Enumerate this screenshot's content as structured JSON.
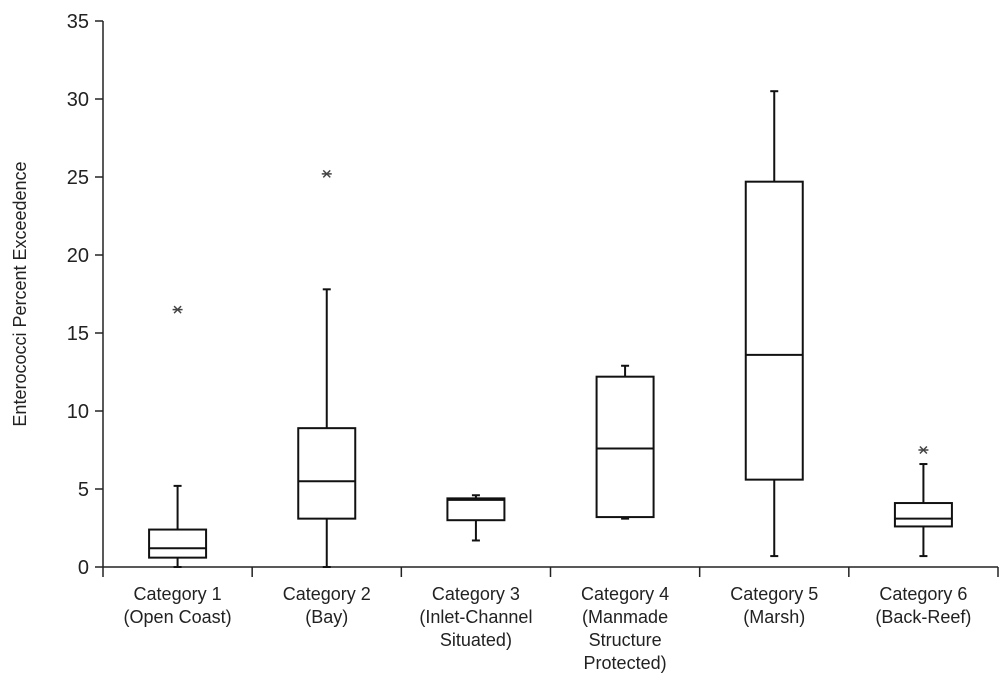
{
  "chart_data": {
    "type": "boxplot",
    "title": "",
    "xlabel": "",
    "ylabel": "Enterococci  Percent Exceedence",
    "ylim": [
      0,
      35
    ],
    "yticks": [
      0,
      5,
      10,
      15,
      20,
      25,
      30,
      35
    ],
    "grid": false,
    "categories": [
      [
        "Category 1",
        "(Open Coast)"
      ],
      [
        "Category 2",
        "(Bay)"
      ],
      [
        "Category 3",
        "(Inlet-Channel",
        "Situated)"
      ],
      [
        "Category 4",
        "(Manmade",
        "Structure",
        "Protected)"
      ],
      [
        "Category 5",
        "(Marsh)"
      ],
      [
        "Category 6",
        "(Back-Reef)"
      ]
    ],
    "series": [
      {
        "min": 0,
        "q1": 0.6,
        "median": 1.2,
        "q3": 2.4,
        "max": 5.2,
        "outliers": [
          16.5
        ]
      },
      {
        "min": 0,
        "q1": 3.1,
        "median": 5.5,
        "q3": 8.9,
        "max": 17.8,
        "outliers": [
          25.2
        ]
      },
      {
        "min": 1.7,
        "q1": 3.0,
        "median": 4.3,
        "q3": 4.4,
        "max": 4.6,
        "outliers": []
      },
      {
        "min": 3.1,
        "q1": 3.2,
        "median": 7.6,
        "q3": 12.2,
        "max": 12.9,
        "outliers": []
      },
      {
        "min": 0.7,
        "q1": 5.6,
        "median": 13.6,
        "q3": 24.7,
        "max": 30.5,
        "outliers": []
      },
      {
        "min": 0.7,
        "q1": 2.6,
        "median": 3.1,
        "q3": 4.1,
        "max": 6.6,
        "outliers": [
          7.5
        ]
      }
    ]
  }
}
